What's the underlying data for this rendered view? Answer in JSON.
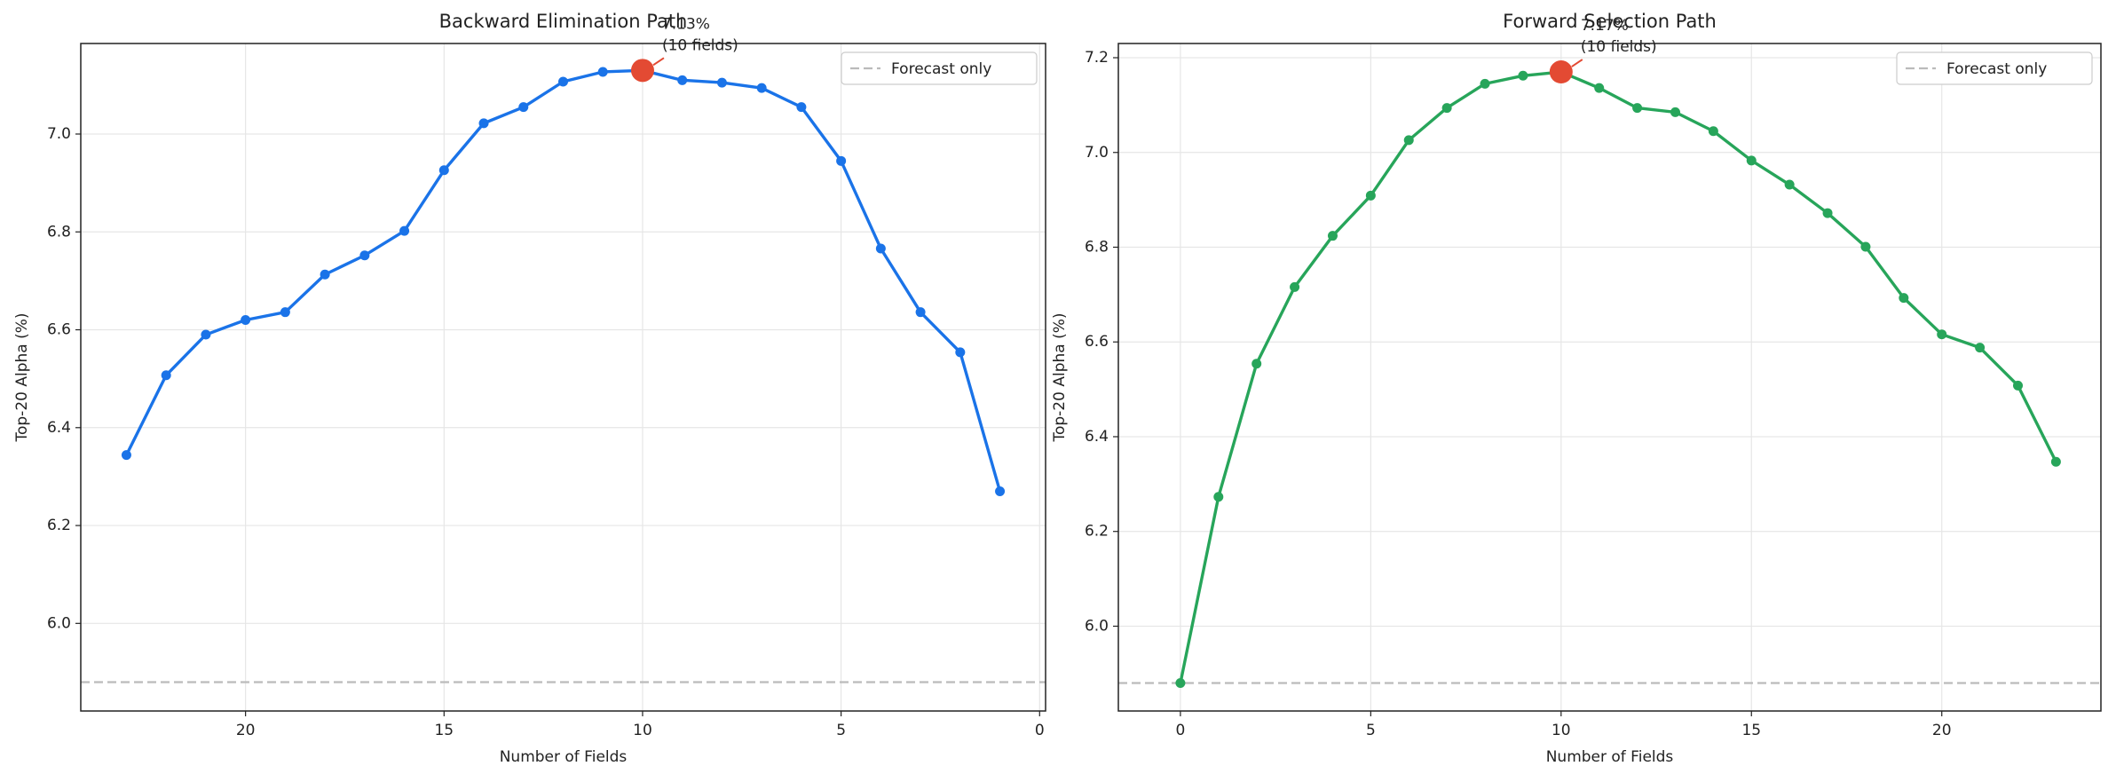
{
  "chart_data": [
    {
      "type": "line",
      "title": "Backward Elimination Path",
      "xlabel": "Number of Fields",
      "ylabel": "Top-20 Alpha (%)",
      "x": [
        23,
        22,
        21,
        20,
        19,
        18,
        17,
        16,
        15,
        14,
        13,
        12,
        11,
        10,
        9,
        8,
        7,
        6,
        5,
        4,
        3,
        2,
        1
      ],
      "series": [
        {
          "color": "#1a73e8",
          "values": [
            6.344,
            6.507,
            6.59,
            6.62,
            6.636,
            6.713,
            6.752,
            6.802,
            6.926,
            7.022,
            7.055,
            7.107,
            7.127,
            7.13,
            7.11,
            7.105,
            7.094,
            7.055,
            6.945,
            6.766,
            6.636,
            6.554,
            6.27
          ]
        }
      ],
      "xlim": [
        24.15,
        -0.15
      ],
      "xticks": [
        20,
        15,
        10,
        5,
        0
      ],
      "ylim": [
        5.821,
        7.185
      ],
      "yticks": [
        {
          "value": 6,
          "label": "6.0"
        },
        6.2,
        6.4,
        6.6,
        6.8,
        {
          "value": 7,
          "label": "7.0"
        }
      ],
      "grid": true,
      "legend": "upper right",
      "reference_line": {
        "name": "Forecast only",
        "value": 5.88,
        "color": "#bbbbbb"
      },
      "annotation": {
        "x": 10,
        "y": 7.13,
        "color": "#e34a33",
        "text": [
          "7.13%",
          "(10 fields)"
        ]
      }
    },
    {
      "type": "line",
      "title": "Forward Selection Path",
      "xlabel": "Number of Fields",
      "ylabel": "Top-20 Alpha (%)",
      "x": [
        0,
        1,
        2,
        3,
        4,
        5,
        6,
        7,
        8,
        9,
        10,
        11,
        12,
        13,
        14,
        15,
        16,
        17,
        18,
        19,
        20,
        21,
        22,
        23
      ],
      "series": [
        {
          "color": "#27a55a",
          "values": [
            5.88,
            6.273,
            6.554,
            6.716,
            6.824,
            6.909,
            7.026,
            7.094,
            7.145,
            7.162,
            7.17,
            7.136,
            7.094,
            7.085,
            7.045,
            6.983,
            6.932,
            6.872,
            6.801,
            6.693,
            6.616,
            6.588,
            6.508,
            6.347
          ]
        }
      ],
      "xlim": [
        -1.63,
        24.18
      ],
      "xticks": [
        0,
        5,
        10,
        15,
        20
      ],
      "ylim": [
        5.821,
        7.23
      ],
      "yticks": [
        {
          "value": 6,
          "label": "6.0"
        },
        6.2,
        6.4,
        6.6,
        6.8,
        {
          "value": 7,
          "label": "7.0"
        },
        7.2
      ],
      "grid": true,
      "legend": "upper right",
      "reference_line": {
        "name": "Forecast only",
        "value": 5.88,
        "color": "#bbbbbb"
      },
      "annotation": {
        "x": 10,
        "y": 7.17,
        "color": "#e34a33",
        "text": [
          "7.17%",
          "(10 fields)"
        ]
      }
    }
  ]
}
